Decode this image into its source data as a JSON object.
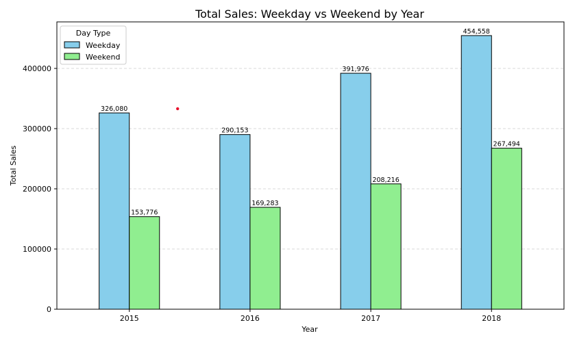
{
  "chart_data": {
    "type": "bar",
    "title": "Total Sales: Weekday vs Weekend by Year",
    "xlabel": "Year",
    "ylabel": "Total Sales",
    "categories": [
      "2015",
      "2016",
      "2017",
      "2018"
    ],
    "series": [
      {
        "name": "Weekday",
        "color": "#87CEEB",
        "values": [
          326080,
          290153,
          391976,
          454558
        ],
        "value_labels": [
          "326,080",
          "290,153",
          "391,976",
          "454,558"
        ]
      },
      {
        "name": "Weekend",
        "color": "#90EE90",
        "values": [
          153776,
          169283,
          208216,
          267494
        ],
        "value_labels": [
          "153,776",
          "169,283",
          "208,216",
          "267,494"
        ]
      }
    ],
    "ylim": [
      0,
      477293
    ],
    "yticks": [
      0,
      100000,
      200000,
      300000,
      400000
    ],
    "ytick_labels": [
      "0",
      "100000",
      "200000",
      "300000",
      "400000"
    ],
    "grid": "y-dashed",
    "legend": {
      "title": "Day Type",
      "placement": "top-left"
    },
    "marker": {
      "x": 0.4,
      "y": 333000,
      "color": "#e8112d"
    }
  }
}
